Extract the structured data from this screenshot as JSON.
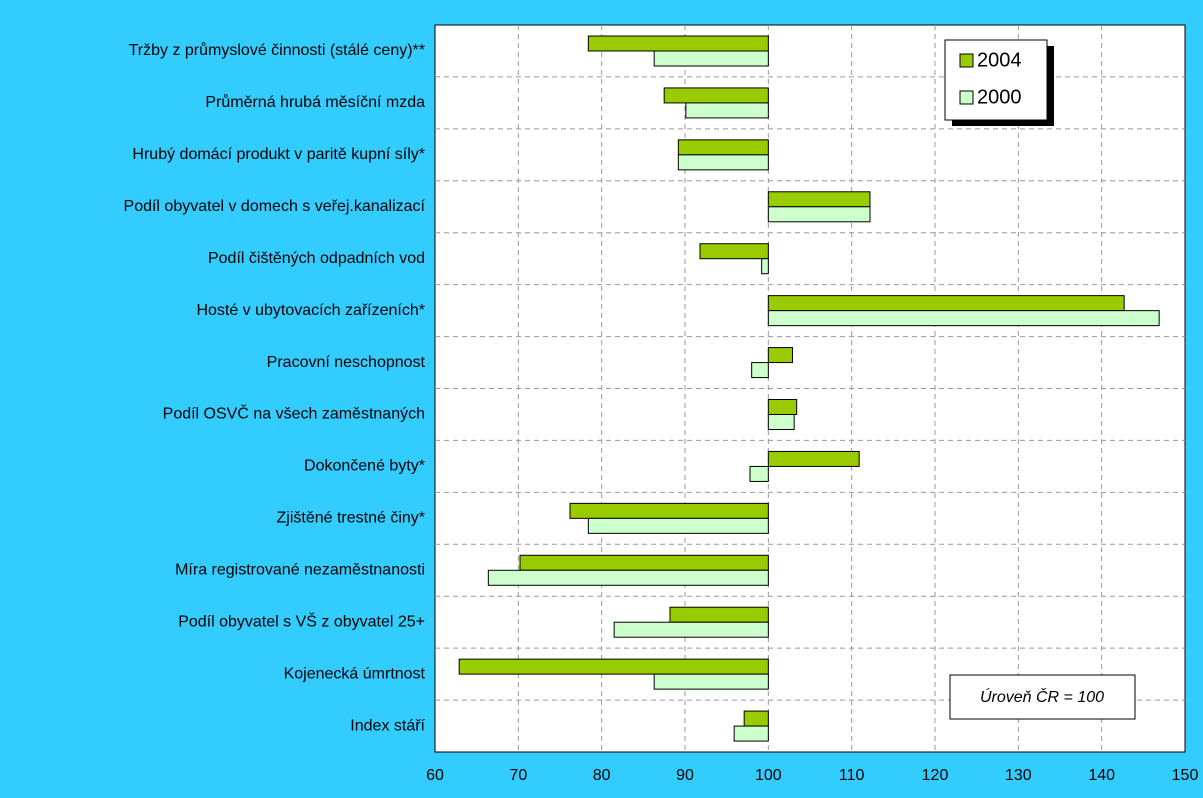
{
  "chart_data": {
    "type": "bar",
    "orientation": "horizontal",
    "base": 100,
    "categories": [
      "Tržby z průmyslové činnosti (stálé ceny)**",
      "Průměrná hrubá měsíční mzda",
      "Hrubý domácí produkt v paritě kupní síly*",
      "Podíl obyvatel v domech s veřej.kanalizací",
      "Podíl čištěných odpadních vod",
      "Hosté v ubytovacích zařízeních*",
      "Pracovní neschopnost",
      "Podíl OSVČ na všech zaměstnaných",
      "Dokončené byty*",
      "Zjištěné trestné činy*",
      "Míra registrované nezaměstnanosti",
      "Podíl obyvatel s VŠ z obyvatel 25+",
      "Kojenecká úmrtnost",
      "Index stáří"
    ],
    "series": [
      {
        "name": "2004",
        "color": "#99cc00",
        "values": [
          78.4,
          87.5,
          89.2,
          112.2,
          91.8,
          142.7,
          102.9,
          103.4,
          110.9,
          76.2,
          70.2,
          88.2,
          62.9,
          97.1
        ]
      },
      {
        "name": "2000",
        "color": "#ccffcc",
        "values": [
          86.3,
          90.1,
          89.2,
          112.2,
          99.2,
          146.9,
          98.0,
          103.1,
          97.8,
          78.4,
          66.4,
          81.5,
          86.3,
          95.9
        ]
      }
    ],
    "xlim": [
      60,
      150
    ],
    "xticks": [
      60,
      70,
      80,
      90,
      100,
      110,
      120,
      130,
      140,
      150
    ],
    "grid": true,
    "legend": "upper right",
    "annotation": "Úroveň ČR = 100"
  }
}
